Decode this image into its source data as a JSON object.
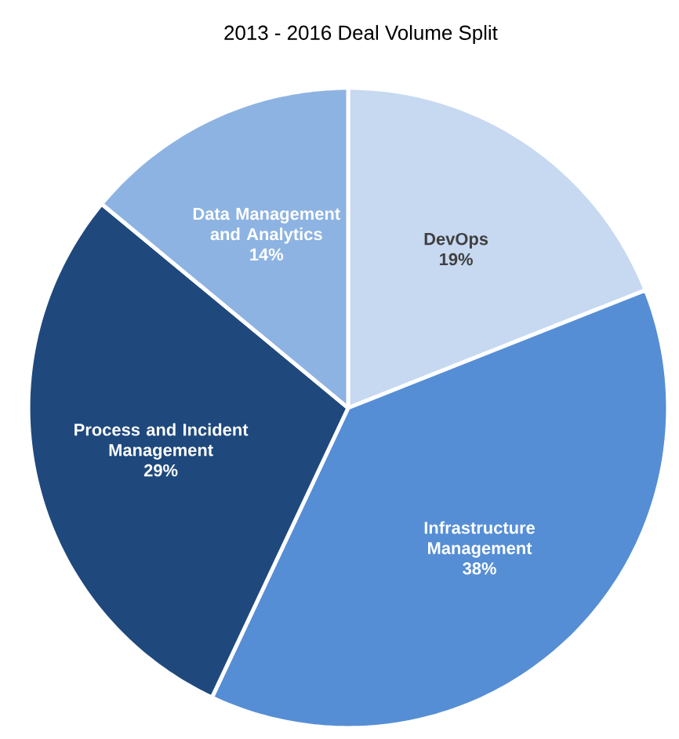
{
  "chart_data": {
    "type": "pie",
    "title": "2013 - 2016 Deal Volume Split",
    "categories": [
      "DevOps",
      "Infrastructure Management",
      "Process and Incident Management",
      "Data Management and Analytics"
    ],
    "values": [
      19,
      38,
      29,
      14
    ],
    "value_labels": [
      "19%",
      "38%",
      "29%",
      "14%"
    ],
    "colors": [
      "#c6d9f1",
      "#558ed5",
      "#1f497d",
      "#8db3e2"
    ]
  }
}
